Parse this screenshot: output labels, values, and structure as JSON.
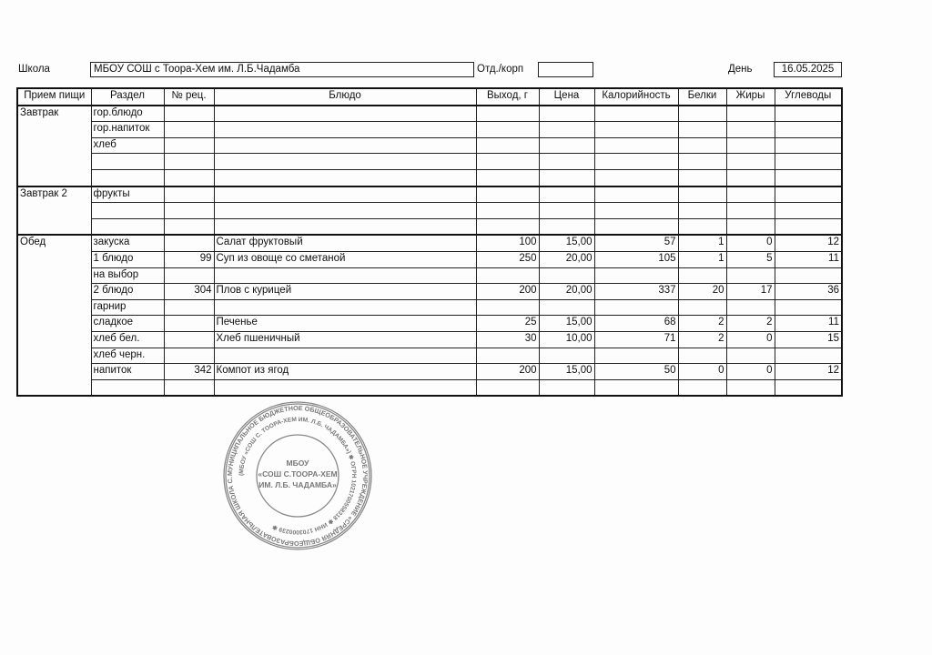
{
  "header": {
    "school_label": "Школа",
    "school_value": "МБОУ СОШ с Тоора-Хем им. Л.Б.Чадамба",
    "dept_label": "Отд./корп",
    "dept_value": "",
    "day_label": "День",
    "day_value": "16.05.2025"
  },
  "table": {
    "columns": [
      "Прием пищи",
      "Раздел",
      "№ рец.",
      "Блюдо",
      "Выход, г",
      "Цена",
      "Калорийность",
      "Белки",
      "Жиры",
      "Углеводы"
    ],
    "groups": [
      {
        "meal": "Завтрак",
        "rows": [
          [
            "гор.блюдо",
            "",
            "",
            "",
            "",
            "",
            "",
            "",
            ""
          ],
          [
            "гор.напиток",
            "",
            "",
            "",
            "",
            "",
            "",
            "",
            ""
          ],
          [
            "хлеб",
            "",
            "",
            "",
            "",
            "",
            "",
            "",
            ""
          ],
          [
            "",
            "",
            "",
            "",
            "",
            "",
            "",
            "",
            ""
          ],
          [
            "",
            "",
            "",
            "",
            "",
            "",
            "",
            "",
            ""
          ]
        ]
      },
      {
        "meal": "Завтрак 2",
        "rows": [
          [
            "фрукты",
            "",
            "",
            "",
            "",
            "",
            "",
            "",
            ""
          ],
          [
            "",
            "",
            "",
            "",
            "",
            "",
            "",
            "",
            ""
          ],
          [
            "",
            "",
            "",
            "",
            "",
            "",
            "",
            "",
            ""
          ]
        ]
      },
      {
        "meal": "Обед",
        "rows": [
          [
            "закуска",
            "",
            "Салат фруктовый",
            "100",
            "15,00",
            "57",
            "1",
            "0",
            "12"
          ],
          [
            "1 блюдо",
            "99",
            "Суп из овоще со сметаной",
            "250",
            "20,00",
            "105",
            "1",
            "5",
            "11"
          ],
          [
            "на выбор",
            "",
            "",
            "",
            "",
            "",
            "",
            "",
            ""
          ],
          [
            "2 блюдо",
            "304",
            "Плов с курицей",
            "200",
            "20,00",
            "337",
            "20",
            "17",
            "36"
          ],
          [
            "гарнир",
            "",
            "",
            "",
            "",
            "",
            "",
            "",
            ""
          ],
          [
            "сладкое",
            "",
            "Печенье",
            "25",
            "15,00",
            "68",
            "2",
            "2",
            "11"
          ],
          [
            "хлеб бел.",
            "",
            "Хлеб пшеничный",
            "30",
            "10,00",
            "71",
            "2",
            "0",
            "15"
          ],
          [
            "хлеб черн.",
            "",
            "",
            "",
            "",
            "",
            "",
            "",
            ""
          ],
          [
            "напиток",
            "342",
            "Компот из ягод",
            "200",
            "15,00",
            "50",
            "0",
            "0",
            "12"
          ],
          [
            "",
            "",
            "",
            "",
            "",
            "",
            "",
            "",
            ""
          ]
        ]
      }
    ]
  },
  "stamp": {
    "outer_text": "МУНИЦИПАЛЬНОЕ БЮДЖЕТНОЕ ОБЩЕОБРАЗОВАТЕЛЬНОЕ УЧРЕЖДЕНИЕ «СРЕДНЯЯ ОБЩЕОБРАЗОВАТЕЛЬНАЯ ШКОЛА С. ТООРА-ХЕМ ИМЕНИ ЛЕОНИДА БОРАНДАЕВИЧА ЧАДАМБА» ТОДЖИНСКОГО РАЙОНА РЕСПУБЛИКИ ТЫВА",
    "inner_text": "(МБОУ «СОШ С. ТООРА-ХЕМ ИМ. Л.Б. ЧАДАМБА») ✱ ОГРН 1021700558318 ✱ ИНН 1703000239 ✱",
    "center_lines": [
      "МБОУ",
      "«СОШ С.ТООРА-ХЕМ",
      "ИМ. Л.Б. ЧАДАМБА»"
    ],
    "color": "#777777"
  }
}
